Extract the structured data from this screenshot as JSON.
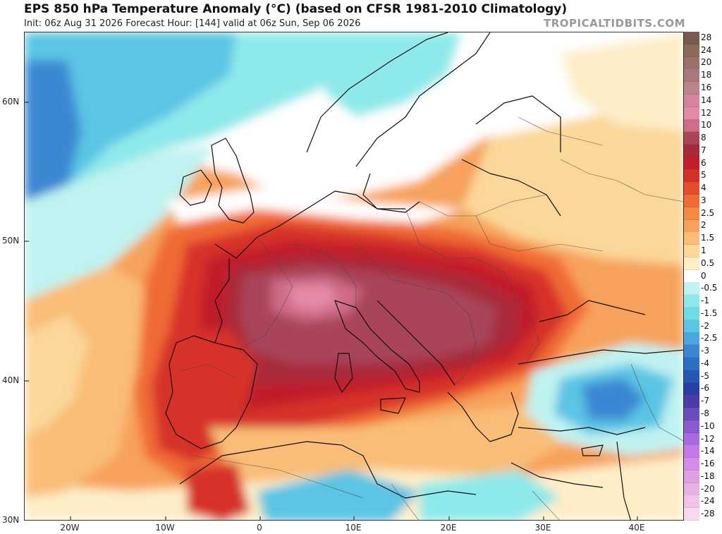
{
  "header": {
    "title": "EPS 850 hPa Temperature Anomaly (°C) (based on CFSR 1981-2010 Climatology)",
    "subtitle": "Init: 06z Aug 31 2026   Forecast Hour: [144]   valid at 06z Sun, Sep 06 2026",
    "brand": "TROPICALTIDBITS.COM"
  },
  "map": {
    "lat_labels": [
      "60N",
      "50N",
      "40N",
      "30N"
    ],
    "lon_labels": [
      "20W",
      "10W",
      "0",
      "10E",
      "20E",
      "30E",
      "40E"
    ],
    "colors": {
      "background": "#ffffff",
      "coast": "#111111",
      "border": "#444444"
    }
  },
  "colorbar": {
    "levels": [
      {
        "label": "28",
        "color": "#7a5a4f"
      },
      {
        "label": "24",
        "color": "#8a6a5c"
      },
      {
        "label": "20",
        "color": "#9b6f6a"
      },
      {
        "label": "18",
        "color": "#a9787a"
      },
      {
        "label": "16",
        "color": "#b9858a"
      },
      {
        "label": "14",
        "color": "#d7839d"
      },
      {
        "label": "12",
        "color": "#e48aa7"
      },
      {
        "label": "10",
        "color": "#cf6c87"
      },
      {
        "label": "8",
        "color": "#a84558"
      },
      {
        "label": "7",
        "color": "#a82a3a"
      },
      {
        "label": "6",
        "color": "#c11f2c"
      },
      {
        "label": "5",
        "color": "#d6302a"
      },
      {
        "label": "4",
        "color": "#e54c2e"
      },
      {
        "label": "3",
        "color": "#f06a36"
      },
      {
        "label": "2.5",
        "color": "#f48a45"
      },
      {
        "label": "2",
        "color": "#f7a25c"
      },
      {
        "label": "1.5",
        "color": "#f9bd78"
      },
      {
        "label": "1",
        "color": "#fbd79a"
      },
      {
        "label": "0.5",
        "color": "#fdeec8"
      },
      {
        "label": "0",
        "color": "#ffffff"
      },
      {
        "label": "-0.5",
        "color": "#bff3f1"
      },
      {
        "label": "-1",
        "color": "#8ee9ea"
      },
      {
        "label": "-1.5",
        "color": "#6fdbe6"
      },
      {
        "label": "-2",
        "color": "#5cc4e4"
      },
      {
        "label": "-2.5",
        "color": "#4aa6dc"
      },
      {
        "label": "-3",
        "color": "#3b87d2"
      },
      {
        "label": "-4",
        "color": "#2f6ec5"
      },
      {
        "label": "-5",
        "color": "#2458b4"
      },
      {
        "label": "-6",
        "color": "#2a3fa5"
      },
      {
        "label": "-7",
        "color": "#4b3ca9"
      },
      {
        "label": "-8",
        "color": "#6a4dc0"
      },
      {
        "label": "-10",
        "color": "#8b5bd3"
      },
      {
        "label": "-12",
        "color": "#a86adf"
      },
      {
        "label": "-14",
        "color": "#c27ae6"
      },
      {
        "label": "-16",
        "color": "#d28ee6"
      },
      {
        "label": "-18",
        "color": "#de9fe3"
      },
      {
        "label": "-20",
        "color": "#e7b1e4"
      },
      {
        "label": "-24",
        "color": "#efc4e8"
      },
      {
        "label": "-28",
        "color": "#f6d8ef"
      }
    ]
  }
}
